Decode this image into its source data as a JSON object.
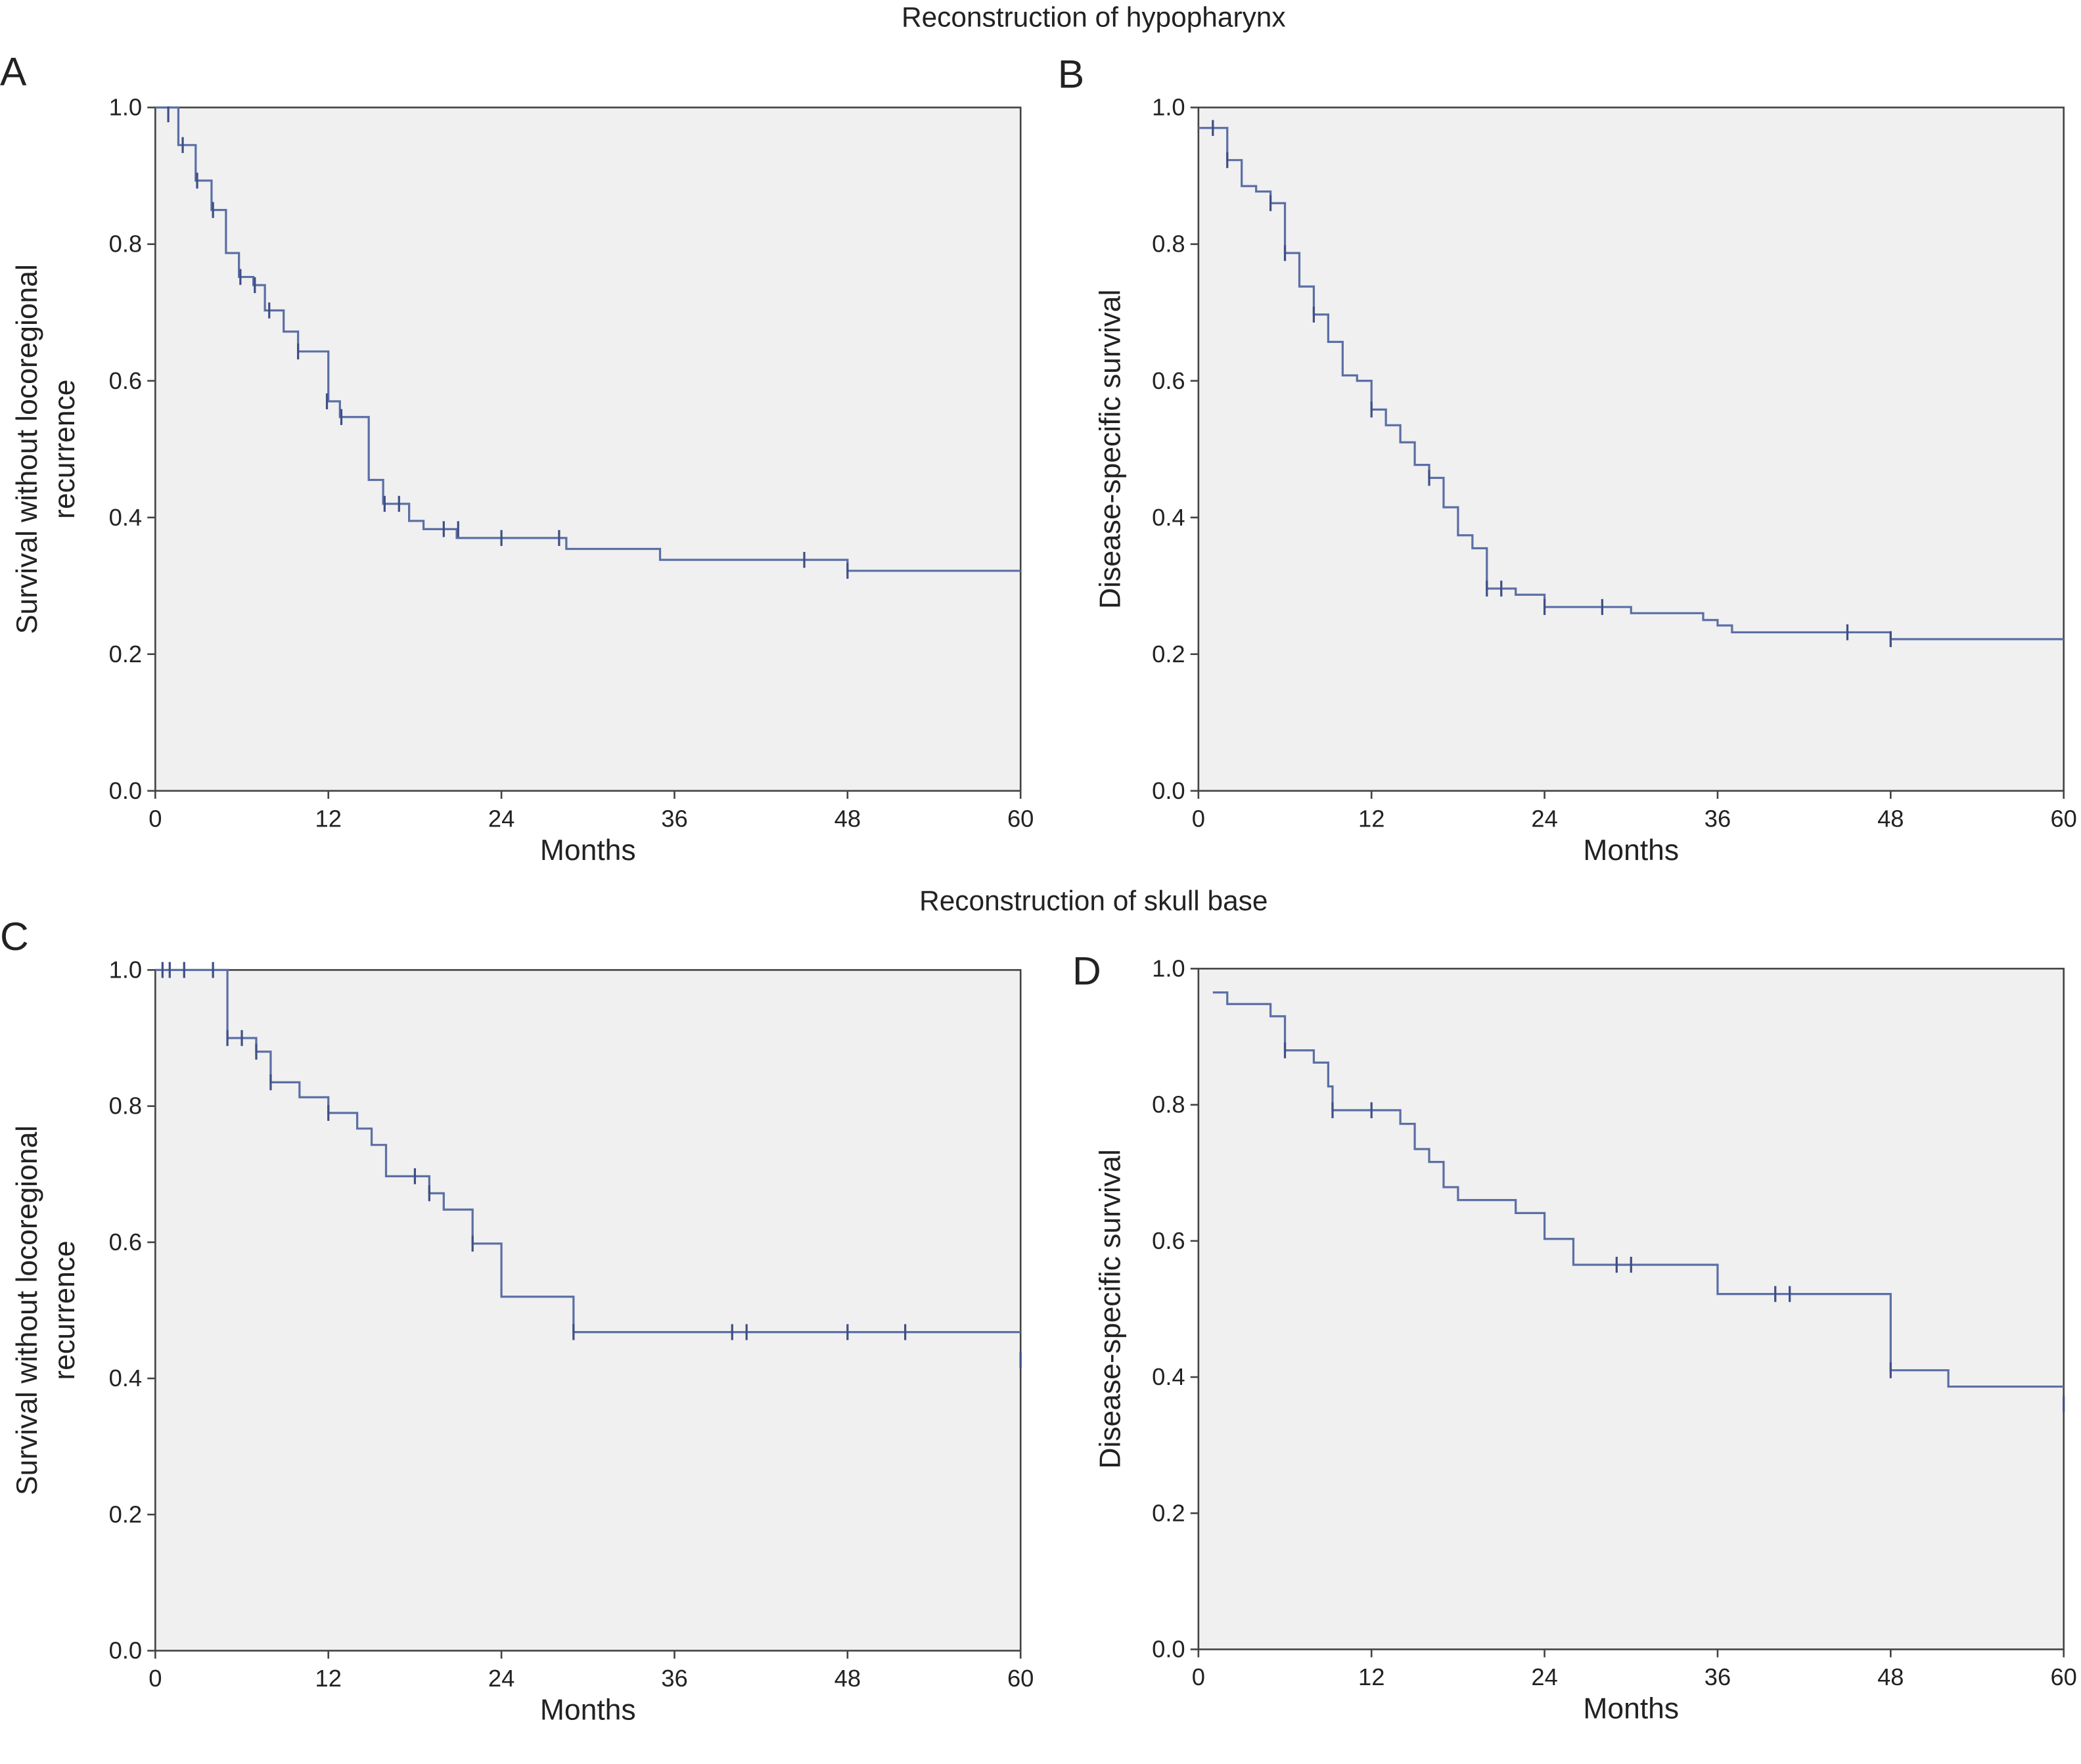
{
  "section_titles": [
    "Reconstruction of hypopharynx",
    "Reconstruction of skull base"
  ],
  "chart_data": [
    {
      "type": "km",
      "panel_label": "A",
      "xlabel": "Months",
      "ylabel": [
        "Survival without locoregional",
        "recurrence"
      ],
      "xlim": [
        0,
        60
      ],
      "ylim": [
        0,
        1
      ],
      "xticks": [
        0,
        12,
        24,
        36,
        48,
        60
      ],
      "yticks": [
        {
          "value": 0,
          "label": "0.0"
        },
        0.2,
        0.4,
        0.6,
        0.8,
        {
          "value": 1,
          "label": "1.0"
        }
      ],
      "series": [
        {
          "style": "step",
          "color": "#5b6fa6",
          "x": [
            0,
            1.6,
            2.8,
            3.9,
            4.9,
            5.8,
            6.8,
            7.6,
            8.9,
            9.9,
            12.0,
            12.8,
            14.8,
            15.8,
            17.6,
            18.6,
            20.9,
            28.5,
            35.0,
            48.0,
            60
          ],
          "values": [
            1.0,
            0.945,
            0.893,
            0.85,
            0.787,
            0.752,
            0.74,
            0.703,
            0.672,
            0.643,
            0.57,
            0.547,
            0.455,
            0.42,
            0.395,
            0.383,
            0.37,
            0.354,
            0.338,
            0.322,
            0.322
          ]
        },
        {
          "style": "censor",
          "color": "#3f4f86",
          "x": [
            0.9,
            1.9,
            2.9,
            4.0,
            5.9,
            6.9,
            7.9,
            9.9,
            11.9,
            12.9,
            15.9,
            16.9,
            20.0,
            21.0,
            24.0,
            28.0,
            45.0,
            48.0
          ],
          "values": [
            0.99,
            0.945,
            0.893,
            0.85,
            0.752,
            0.74,
            0.703,
            0.643,
            0.57,
            0.547,
            0.42,
            0.42,
            0.383,
            0.383,
            0.37,
            0.37,
            0.338,
            0.322
          ]
        }
      ]
    },
    {
      "type": "km",
      "panel_label": "B",
      "xlabel": "Months",
      "ylabel": [
        "Disease-specific survival"
      ],
      "xlim": [
        0,
        60
      ],
      "ylim": [
        0,
        1
      ],
      "xticks": [
        0,
        12,
        24,
        36,
        48,
        60
      ],
      "yticks": [
        {
          "value": 0,
          "label": "0.0"
        },
        0.2,
        0.4,
        0.6,
        0.8,
        {
          "value": 1,
          "label": "1.0"
        }
      ],
      "series": [
        {
          "style": "step",
          "color": "#5b6fa6",
          "x": [
            0,
            2,
            3,
            4,
            5,
            6,
            7,
            8,
            9,
            10,
            11,
            12,
            13,
            14,
            15,
            16,
            17,
            18,
            19,
            20,
            22,
            24,
            30,
            35,
            36,
            37,
            48,
            60
          ],
          "values": [
            0.97,
            0.923,
            0.885,
            0.877,
            0.86,
            0.787,
            0.738,
            0.697,
            0.657,
            0.608,
            0.6,
            0.558,
            0.535,
            0.51,
            0.477,
            0.458,
            0.415,
            0.374,
            0.355,
            0.296,
            0.287,
            0.269,
            0.26,
            0.25,
            0.242,
            0.232,
            0.222,
            0.222
          ]
        },
        {
          "style": "censor",
          "color": "#3f4f86",
          "x": [
            1,
            2,
            5,
            6,
            8,
            12,
            16,
            20,
            21,
            24,
            28,
            45,
            48
          ],
          "values": [
            0.97,
            0.923,
            0.86,
            0.787,
            0.697,
            0.558,
            0.458,
            0.296,
            0.296,
            0.269,
            0.269,
            0.232,
            0.222
          ]
        }
      ]
    },
    {
      "type": "km",
      "panel_label": "C",
      "xlabel": "Months",
      "ylabel": [
        "Survival without locoregional",
        "recurrence"
      ],
      "xlim": [
        0,
        60
      ],
      "ylim": [
        0,
        1
      ],
      "xticks": [
        0,
        12,
        24,
        36,
        48,
        60
      ],
      "yticks": [
        {
          "value": 0,
          "label": "0.0"
        },
        0.2,
        0.4,
        0.6,
        0.8,
        {
          "value": 1,
          "label": "1.0"
        }
      ],
      "series": [
        {
          "style": "step",
          "color": "#5b6fa6",
          "x": [
            0,
            5,
            7,
            8,
            10,
            12,
            14,
            15,
            16,
            19,
            20,
            22,
            24,
            29,
            60
          ],
          "values": [
            1.0,
            0.9,
            0.88,
            0.835,
            0.813,
            0.79,
            0.767,
            0.743,
            0.697,
            0.672,
            0.648,
            0.598,
            0.52,
            0.468,
            0.468
          ]
        },
        {
          "style": "censor",
          "color": "#3f4f86",
          "x": [
            0.5,
            1,
            2,
            4,
            5,
            6,
            7,
            8,
            12,
            18,
            19,
            22,
            29,
            40,
            41,
            48,
            52,
            60
          ],
          "values": [
            1.0,
            1.0,
            1.0,
            1.0,
            0.9,
            0.9,
            0.88,
            0.835,
            0.79,
            0.697,
            0.672,
            0.598,
            0.468,
            0.468,
            0.468,
            0.468,
            0.468,
            0.427
          ]
        }
      ]
    },
    {
      "type": "km",
      "panel_label": "D",
      "xlabel": "Months",
      "ylabel": [
        "Disease-specific survival"
      ],
      "xlim": [
        0,
        60
      ],
      "ylim": [
        0,
        1
      ],
      "xticks": [
        0,
        12,
        24,
        36,
        48,
        60
      ],
      "yticks": [
        {
          "value": 0,
          "label": "0.0"
        },
        0.2,
        0.4,
        0.6,
        0.8,
        {
          "value": 1,
          "label": "1.0"
        }
      ],
      "series": [
        {
          "style": "step",
          "color": "#5b6fa6",
          "x": [
            1,
            2,
            5,
            6,
            8,
            9,
            9.3,
            14,
            15,
            16,
            17,
            18,
            22,
            24,
            26,
            36,
            48,
            52,
            60
          ],
          "values": [
            0.965,
            0.948,
            0.93,
            0.88,
            0.862,
            0.827,
            0.792,
            0.772,
            0.735,
            0.716,
            0.679,
            0.66,
            0.641,
            0.603,
            0.565,
            0.522,
            0.41,
            0.386,
            0.386
          ]
        },
        {
          "style": "censor",
          "color": "#3f4f86",
          "x": [
            6,
            9.3,
            12,
            29,
            30,
            40,
            41,
            48,
            60
          ],
          "values": [
            0.88,
            0.792,
            0.792,
            0.565,
            0.565,
            0.522,
            0.522,
            0.41,
            0.36
          ]
        }
      ]
    }
  ]
}
